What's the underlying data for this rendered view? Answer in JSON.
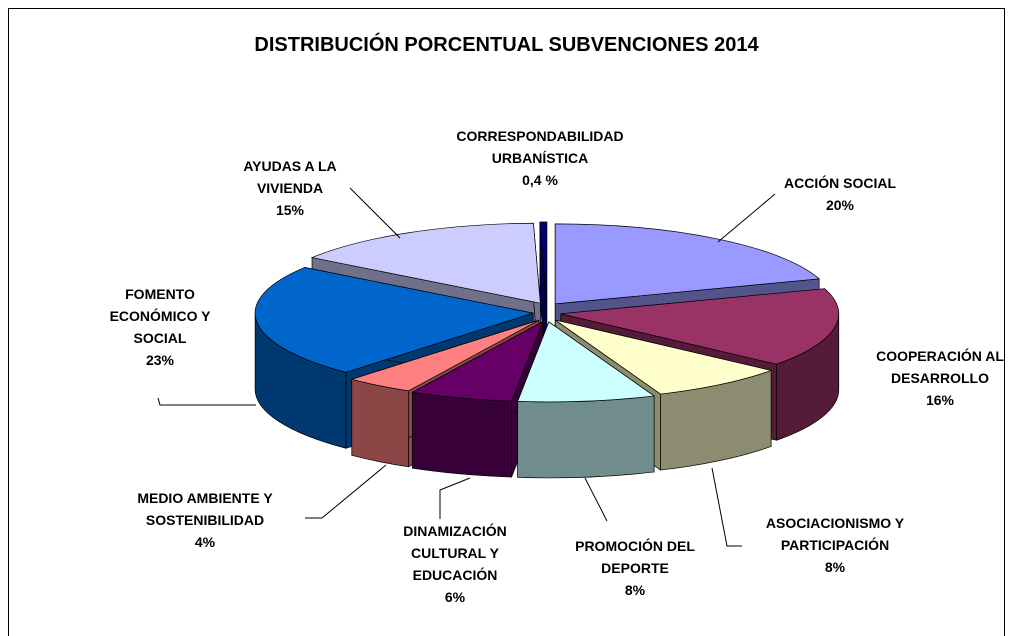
{
  "chart_data": {
    "type": "pie3d",
    "title": "DISTRIBUCIÓN PORCENTUAL SUBVENCIONES 2014",
    "categories": [
      "ACCIÓN SOCIAL",
      "COOPERACIÓN AL DESARROLLO",
      "ASOCIACIONISMO Y PARTICIPACIÓN",
      "PROMOCIÓN DEL DEPORTE",
      "DINAMIZACIÓN CULTURAL Y EDUCACIÓN",
      "MEDIO AMBIENTE Y SOSTENIBILIDAD",
      "FOMENTO ECONÓMICO Y SOCIAL",
      "AYUDAS A LA VIVIENDA",
      "CORRESPONDABILIDAD URBANÍSTICA"
    ],
    "values": [
      20,
      16,
      8,
      8,
      6,
      4,
      23,
      15,
      0.4
    ],
    "value_labels": [
      "20%",
      "16%",
      "8%",
      "8%",
      "6%",
      "4%",
      "23%",
      "15%",
      "0,4 %"
    ],
    "colors": [
      "#9999ff",
      "#993366",
      "#ffffcc",
      "#ccffff",
      "#660066",
      "#ff8080",
      "#0066cc",
      "#ccccff",
      "#000080"
    ]
  }
}
